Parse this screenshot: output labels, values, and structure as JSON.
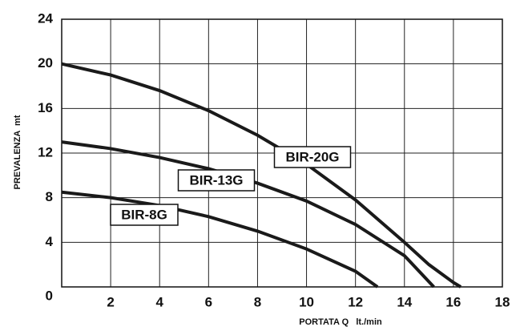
{
  "chart_data": {
    "type": "line",
    "y_label": "PREVALENZA  mt",
    "x_label": "PORTATA Q   lt./min",
    "xlim": [
      0,
      18
    ],
    "ylim": [
      0,
      24
    ],
    "xticks": [
      2,
      4,
      6,
      8,
      10,
      12,
      14,
      16,
      18
    ],
    "yticks": [
      0,
      4,
      8,
      12,
      16,
      20,
      24
    ],
    "grid": true,
    "series": [
      {
        "name": "BIR-20G",
        "color": "#1a1a1a",
        "x": [
          0,
          2,
          4,
          6,
          8,
          10,
          12,
          14,
          15,
          16,
          16.3
        ],
        "y": [
          20,
          19,
          17.6,
          15.8,
          13.6,
          11,
          7.8,
          4,
          2,
          0.4,
          0
        ]
      },
      {
        "name": "BIR-13G",
        "color": "#1a1a1a",
        "x": [
          0,
          2,
          4,
          6,
          8,
          10,
          12,
          14,
          15.2
        ],
        "y": [
          13,
          12.4,
          11.6,
          10.6,
          9.3,
          7.7,
          5.6,
          2.8,
          0
        ]
      },
      {
        "name": "BIR-8G",
        "color": "#1a1a1a",
        "x": [
          0,
          2,
          4,
          6,
          8,
          10,
          12,
          12.9
        ],
        "y": [
          8.5,
          8,
          7.3,
          6.3,
          5,
          3.4,
          1.4,
          0
        ]
      }
    ]
  }
}
